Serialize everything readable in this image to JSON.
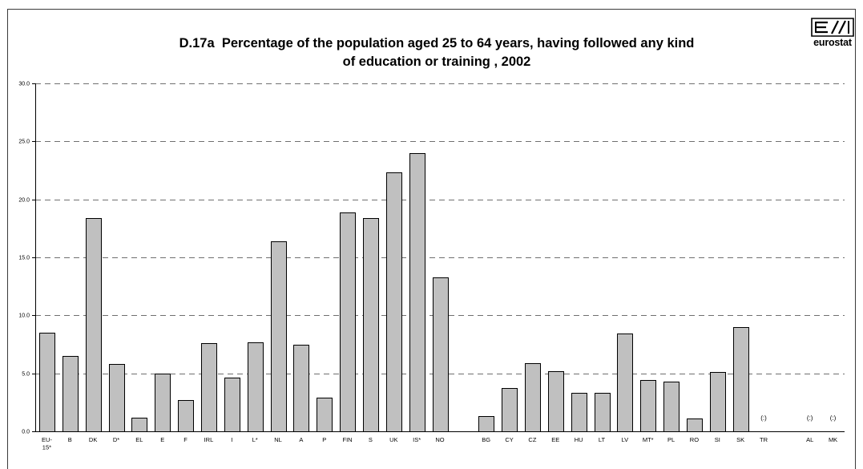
{
  "chart_data": {
    "type": "bar",
    "title": "D.17a  Percentage of the population aged 25 to 64 years, having followed any kind\nof education or training , 2002",
    "xlabel": "",
    "ylabel": "",
    "categories": [
      "EU-15*",
      "B",
      "DK",
      "D*",
      "EL",
      "E",
      "F",
      "IRL",
      "I",
      "L*",
      "NL",
      "A",
      "P",
      "FIN",
      "S",
      "UK",
      "IS*",
      "NO",
      "BG",
      "CY",
      "CZ",
      "EE",
      "HU",
      "LT",
      "LV",
      "MT*",
      "PL",
      "RO",
      "SI",
      "SK",
      "TR",
      "AL",
      "MK"
    ],
    "values": [
      8.5,
      6.5,
      18.4,
      5.8,
      1.2,
      5.0,
      2.7,
      7.6,
      4.6,
      7.7,
      16.4,
      7.5,
      2.9,
      18.9,
      18.4,
      22.3,
      24.0,
      13.3,
      1.3,
      3.7,
      5.9,
      5.2,
      3.3,
      3.3,
      8.4,
      4.4,
      4.3,
      1.1,
      5.1,
      9.0,
      null,
      null,
      null
    ],
    "missing_value_label": "(:)",
    "gaps_after": [
      "NO",
      "TR"
    ],
    "ylim": [
      0,
      30
    ],
    "yticks": [
      0,
      5,
      10,
      15,
      20,
      25,
      30
    ],
    "ytick_labels": [
      "0.0",
      "5.0",
      "10.0",
      "15.0",
      "20.0",
      "25.0",
      "30.0"
    ],
    "grid": true,
    "bar_color": "#c0c0c0"
  },
  "logo": {
    "text": "eurostat",
    "icon": "eurostat-logo-icon"
  }
}
